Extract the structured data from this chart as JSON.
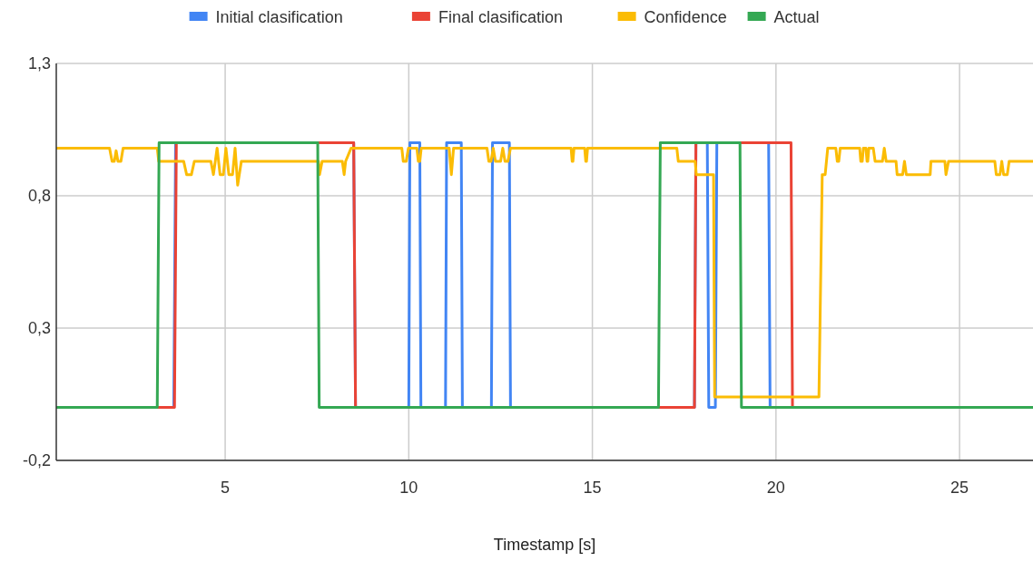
{
  "chart_data": {
    "type": "line",
    "xlabel": "Timestamp [s]",
    "xlim": [
      0.4,
      27
    ],
    "xticks": [
      5,
      10,
      15,
      20,
      25
    ],
    "ylim": [
      -0.2,
      1.3
    ],
    "yticks": [
      {
        "value": -0.2,
        "label": "-0,2"
      },
      {
        "value": 0.3,
        "label": "0,3"
      },
      {
        "value": 0.8,
        "label": "0,8"
      },
      {
        "value": 1.3,
        "label": "1,3"
      }
    ],
    "grid": true,
    "legend": "top",
    "series": [
      {
        "name": "Initial clasification",
        "color": "#4285f4",
        "x": [
          0.4,
          3.6,
          3.65,
          8.5,
          8.55,
          10.0,
          10.03,
          10.3,
          10.33,
          11.0,
          11.03,
          11.43,
          11.46,
          12.25,
          12.28,
          12.74,
          12.77,
          17.78,
          17.82,
          18.13,
          18.17,
          18.35,
          18.39,
          19.8,
          19.84,
          27
        ],
        "values": [
          0,
          0,
          1,
          1,
          0,
          0,
          1,
          1,
          0,
          0,
          1,
          1,
          0,
          0,
          1,
          1,
          0,
          0,
          1,
          1,
          0,
          0,
          1,
          1,
          0,
          0
        ]
      },
      {
        "name": "Final clasification",
        "color": "#ea4335",
        "x": [
          0.4,
          3.62,
          3.67,
          8.5,
          8.55,
          17.78,
          17.82,
          20.41,
          20.45,
          27
        ],
        "values": [
          0,
          0,
          1,
          1,
          0,
          0,
          1,
          1,
          0,
          0
        ]
      },
      {
        "name": "Confidence",
        "color": "#fbbc04",
        "x": [
          0.4,
          1.85,
          1.92,
          1.98,
          2.03,
          2.08,
          2.16,
          2.22,
          3.15,
          3.19,
          3.87,
          3.95,
          4.08,
          4.16,
          4.61,
          4.68,
          4.78,
          4.86,
          4.95,
          5.02,
          5.1,
          5.2,
          5.27,
          5.34,
          5.44,
          7.54,
          7.57,
          7.64,
          8.19,
          8.24,
          8.28,
          8.43,
          9.81,
          9.85,
          9.93,
          9.99,
          10.22,
          10.26,
          10.3,
          10.34,
          11.1,
          11.16,
          11.22,
          12.13,
          12.18,
          12.24,
          12.3,
          12.36,
          12.5,
          12.56,
          12.62,
          12.7,
          12.77,
          14.42,
          14.45,
          14.47,
          14.5,
          14.79,
          14.82,
          14.84,
          14.87,
          17.3,
          17.34,
          17.8,
          17.83,
          18.3,
          18.33,
          21.17,
          21.26,
          21.34,
          21.41,
          21.63,
          21.67,
          21.71,
          21.75,
          22.28,
          22.31,
          22.35,
          22.38,
          22.45,
          22.48,
          22.5,
          22.53,
          22.65,
          22.7,
          22.9,
          22.95,
          23.0,
          23.27,
          23.3,
          23.45,
          23.5,
          23.55,
          23.75,
          24.2,
          24.22,
          24.6,
          24.63,
          24.7,
          25.96,
          26.0,
          26.1,
          26.15,
          26.2,
          26.3,
          26.35,
          27
        ],
        "values": [
          0.98,
          0.98,
          0.93,
          0.93,
          0.97,
          0.93,
          0.93,
          0.98,
          0.98,
          0.93,
          0.93,
          0.88,
          0.88,
          0.93,
          0.93,
          0.88,
          0.98,
          0.88,
          0.88,
          0.98,
          0.88,
          0.88,
          0.98,
          0.84,
          0.93,
          0.93,
          0.88,
          0.93,
          0.93,
          0.88,
          0.93,
          0.98,
          0.98,
          0.93,
          0.93,
          0.98,
          0.98,
          0.93,
          0.93,
          0.98,
          0.98,
          0.88,
          0.98,
          0.98,
          0.93,
          0.93,
          0.98,
          0.93,
          0.93,
          0.98,
          0.93,
          0.93,
          0.98,
          0.98,
          0.93,
          0.93,
          0.98,
          0.98,
          0.93,
          0.93,
          0.98,
          0.98,
          0.93,
          0.93,
          0.88,
          0.88,
          0.04,
          0.04,
          0.88,
          0.88,
          0.98,
          0.98,
          0.93,
          0.93,
          0.98,
          0.98,
          0.93,
          0.93,
          0.98,
          0.98,
          0.93,
          0.93,
          0.98,
          0.98,
          0.93,
          0.93,
          0.98,
          0.93,
          0.93,
          0.88,
          0.88,
          0.93,
          0.88,
          0.88,
          0.88,
          0.93,
          0.93,
          0.88,
          0.93,
          0.93,
          0.88,
          0.88,
          0.93,
          0.88,
          0.88,
          0.93,
          0.93
        ]
      },
      {
        "name": "Actual",
        "color": "#34a853",
        "x": [
          0.4,
          3.15,
          3.2,
          7.52,
          7.56,
          16.8,
          16.85,
          19.02,
          19.06,
          27
        ],
        "values": [
          0,
          0,
          1,
          1,
          0,
          0,
          1,
          1,
          0,
          0
        ]
      }
    ]
  }
}
